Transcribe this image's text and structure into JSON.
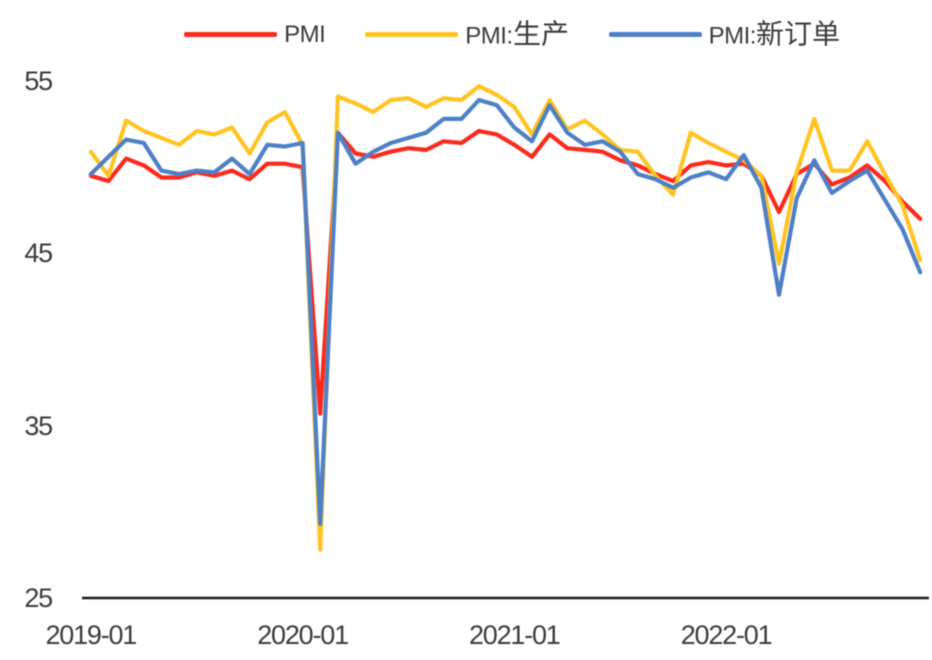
{
  "chart_data": {
    "type": "line",
    "x": [
      "2019-01",
      "2019-02",
      "2019-03",
      "2019-04",
      "2019-05",
      "2019-06",
      "2019-07",
      "2019-08",
      "2019-09",
      "2019-10",
      "2019-11",
      "2019-12",
      "2020-01",
      "2020-02",
      "2020-03",
      "2020-04",
      "2020-05",
      "2020-06",
      "2020-07",
      "2020-08",
      "2020-09",
      "2020-10",
      "2020-11",
      "2020-12",
      "2021-01",
      "2021-02",
      "2021-03",
      "2021-04",
      "2021-05",
      "2021-06",
      "2021-07",
      "2021-08",
      "2021-09",
      "2021-10",
      "2021-11",
      "2021-12",
      "2022-01",
      "2022-02",
      "2022-03",
      "2022-04",
      "2022-05",
      "2022-06",
      "2022-07",
      "2022-08",
      "2022-09",
      "2022-10",
      "2022-11",
      "2022-12"
    ],
    "series": [
      {
        "name": "PMI",
        "values": [
          49.5,
          49.2,
          50.5,
          50.1,
          49.4,
          49.4,
          49.7,
          49.5,
          49.8,
          49.3,
          50.2,
          50.2,
          50.0,
          35.7,
          52.0,
          50.8,
          50.6,
          50.9,
          51.1,
          51.0,
          51.5,
          51.4,
          52.1,
          51.9,
          51.3,
          50.6,
          51.9,
          51.1,
          51.0,
          50.9,
          50.4,
          50.1,
          49.6,
          49.2,
          50.1,
          50.3,
          50.1,
          50.2,
          49.5,
          47.4,
          49.6,
          50.2,
          49.0,
          49.4,
          50.1,
          49.2,
          48.0,
          47.0
        ],
        "color": "#fa2b1c"
      },
      {
        "name": "PMI:生产",
        "values": [
          50.9,
          49.5,
          52.7,
          52.1,
          51.7,
          51.3,
          52.1,
          51.9,
          52.3,
          50.8,
          52.6,
          53.2,
          51.3,
          27.8,
          54.1,
          53.7,
          53.2,
          53.9,
          54.0,
          53.5,
          54.0,
          53.9,
          54.7,
          54.2,
          53.5,
          51.9,
          53.9,
          52.2,
          52.7,
          51.9,
          51.0,
          50.9,
          49.5,
          48.4,
          52.0,
          51.4,
          50.9,
          50.4,
          49.5,
          44.4,
          49.7,
          52.8,
          49.8,
          49.8,
          51.5,
          49.6,
          47.8,
          44.6
        ],
        "color": "#ffc424"
      },
      {
        "name": "PMI:新订单",
        "values": [
          49.6,
          50.6,
          51.6,
          51.4,
          49.8,
          49.6,
          49.8,
          49.7,
          50.5,
          49.6,
          51.3,
          51.2,
          51.4,
          29.3,
          52.0,
          50.2,
          50.9,
          51.4,
          51.7,
          52.0,
          52.8,
          52.8,
          53.9,
          53.6,
          52.3,
          51.5,
          53.6,
          52.0,
          51.3,
          51.5,
          50.9,
          49.6,
          49.3,
          48.8,
          49.4,
          49.7,
          49.3,
          50.7,
          48.8,
          42.6,
          48.2,
          50.4,
          48.5,
          49.2,
          49.8,
          48.1,
          46.4,
          43.9
        ],
        "color": "#4e80c6"
      }
    ],
    "ylabel": "",
    "xlabel": "",
    "ylim": [
      25,
      55
    ],
    "yticks": [
      "55",
      "45",
      "35",
      "25"
    ],
    "ytick_values": [
      55,
      45,
      35,
      25
    ],
    "xticks": [
      "2019-01",
      "2020-01",
      "2021-01",
      "2022-01"
    ],
    "xtick_month_index": [
      0,
      12,
      24,
      36
    ],
    "grid": "off",
    "legend_position": "top"
  },
  "legend": {
    "items": [
      {
        "label": "PMI",
        "label_latin": "PMI",
        "label_cjk": "",
        "color": "#fa2b1c",
        "swatch": "red-line"
      },
      {
        "label": "PMI:生产",
        "label_latin": "PMI:",
        "label_cjk": "生产",
        "color": "#ffc424",
        "swatch": "yellow-line"
      },
      {
        "label": "PMI:新订单",
        "label_latin": "PMI:",
        "label_cjk": "新订单",
        "color": "#4e80c6",
        "swatch": "blue-line"
      }
    ]
  },
  "axis": {
    "line_color": "#1c1c1c",
    "text_color": "#3c3c3c"
  }
}
